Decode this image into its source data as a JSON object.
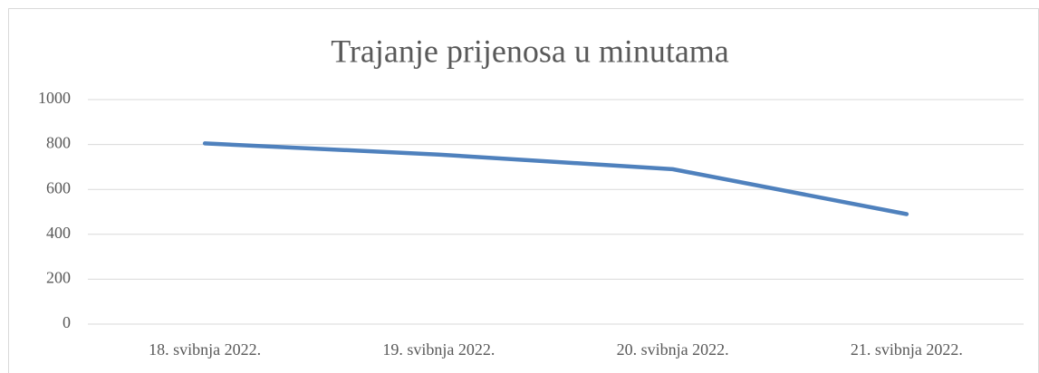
{
  "chart_data": {
    "type": "line",
    "title": "Trajanje prijenosa u minutama",
    "categories": [
      "18. svibnja 2022.",
      "19. svibnja 2022.",
      "20. svibnja 2022.",
      "21. svibnja 2022."
    ],
    "series": [
      {
        "name": "Trajanje",
        "color": "#4f81bd",
        "values": [
          805,
          755,
          690,
          490
        ]
      }
    ],
    "ylim": [
      0,
      1000
    ],
    "yticks": [
      0,
      200,
      400,
      600,
      800,
      1000
    ],
    "grid": true
  }
}
